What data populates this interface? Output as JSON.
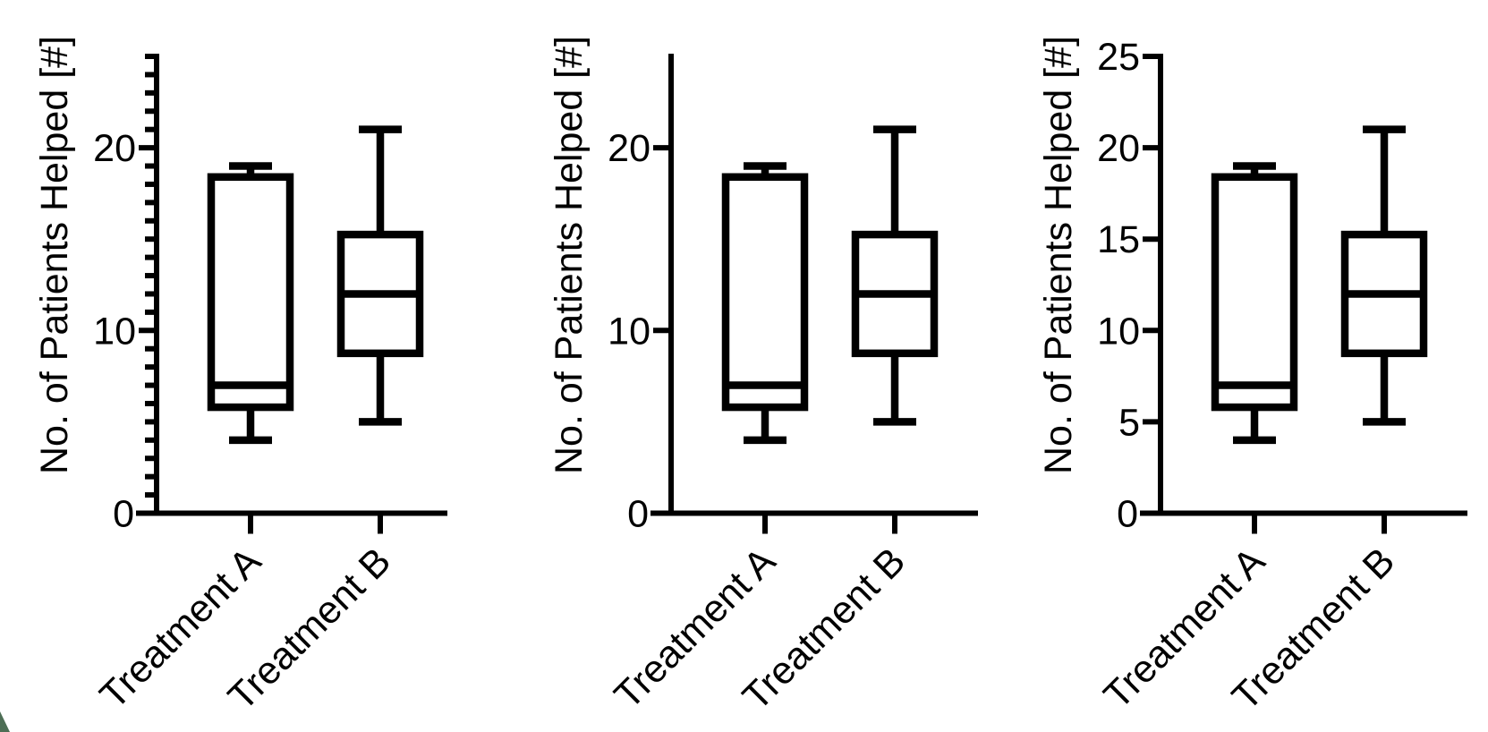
{
  "figure": {
    "background": "#ffffff",
    "stroke_color": "#000000",
    "text_color": "#000000"
  },
  "corner_artifact": {
    "color": "#4d6e55"
  },
  "chart_data": [
    {
      "type": "box",
      "title": "",
      "xlabel": "",
      "ylabel": "No. of Patients Helped [#]",
      "categories": [
        "Treatment A",
        "Treatment B"
      ],
      "series": [
        {
          "name": "Treatment A",
          "whisker_low": 4,
          "q1": 5.8,
          "median": 7,
          "q3": 18.4,
          "whisker_high": 19
        },
        {
          "name": "Treatment B",
          "whisker_low": 5,
          "q1": 8.75,
          "median": 12,
          "q3": 15.25,
          "whisker_high": 21
        }
      ],
      "ylim": [
        0,
        25
      ],
      "yticks_labeled": [
        0,
        10,
        20
      ],
      "minor_tick_interval": 1,
      "grid": false,
      "legend": "none"
    },
    {
      "type": "box",
      "title": "",
      "xlabel": "",
      "ylabel": "No. of Patients Helped [#]",
      "categories": [
        "Treatment A",
        "Treatment B"
      ],
      "series": [
        {
          "name": "Treatment A",
          "whisker_low": 4,
          "q1": 5.8,
          "median": 7,
          "q3": 18.4,
          "whisker_high": 19
        },
        {
          "name": "Treatment B",
          "whisker_low": 5,
          "q1": 8.75,
          "median": 12,
          "q3": 15.25,
          "whisker_high": 21
        }
      ],
      "ylim": [
        0,
        25
      ],
      "yticks_labeled": [
        0,
        10,
        20
      ],
      "minor_tick_interval": null,
      "grid": false,
      "legend": "none"
    },
    {
      "type": "box",
      "title": "",
      "xlabel": "",
      "ylabel": "No. of Patients Helped [#]",
      "categories": [
        "Treatment A",
        "Treatment B"
      ],
      "series": [
        {
          "name": "Treatment A",
          "whisker_low": 4,
          "q1": 5.8,
          "median": 7,
          "q3": 18.4,
          "whisker_high": 19
        },
        {
          "name": "Treatment B",
          "whisker_low": 5,
          "q1": 8.75,
          "median": 12,
          "q3": 15.25,
          "whisker_high": 21
        }
      ],
      "ylim": [
        0,
        25
      ],
      "yticks_labeled": [
        0,
        5,
        10,
        15,
        20,
        25
      ],
      "minor_tick_interval": null,
      "grid": false,
      "legend": "none"
    }
  ]
}
